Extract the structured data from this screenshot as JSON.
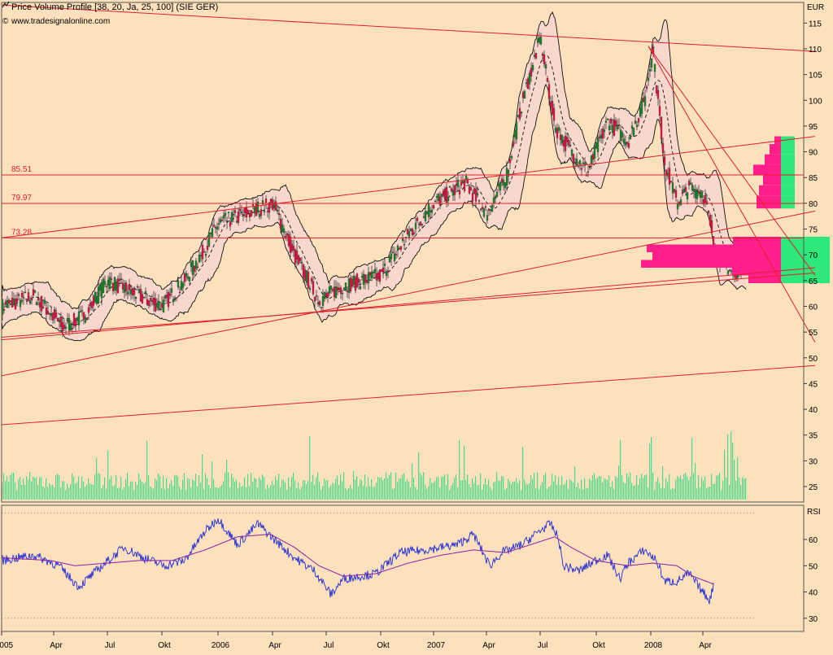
{
  "header": {
    "title": "Price Volume Profile [38, 20, Ja, 25, 100] (SIE GER)",
    "copyright": "www.tradesignalonline.com"
  },
  "colors": {
    "background": "#fde1bd",
    "trendline": "#e0202a",
    "bull_candle": "#1a8c2e",
    "bear_candle": "#e8174b",
    "volume": "#4cd98a",
    "profile_pink": "#ff1e8a",
    "profile_green": "#2ee87a",
    "rsi": "#1f2bd6",
    "rsi_avg": "#8a1fa6"
  },
  "chart_data": [
    {
      "type": "candlestick",
      "unit": "EUR",
      "ylim": [
        22,
        119
      ],
      "y_ticks": [
        25,
        30,
        35,
        40,
        45,
        50,
        55,
        60,
        65,
        70,
        75,
        80,
        85,
        90,
        95,
        100,
        105,
        110,
        115
      ],
      "x_labels": [
        "2005",
        "Apr",
        "Jul",
        "Okt",
        "2006",
        "Apr",
        "Jul",
        "Okt",
        "2007",
        "Apr",
        "Jul",
        "Okt",
        "2008",
        "Apr"
      ],
      "x_label_pos": [
        0,
        64,
        130,
        197,
        266,
        333,
        399,
        466,
        531,
        596,
        662,
        731,
        798,
        862
      ],
      "price_path": [
        [
          0,
          60
        ],
        [
          40,
          62
        ],
        [
          64,
          58
        ],
        [
          75,
          56
        ],
        [
          100,
          58
        ],
        [
          130,
          65
        ],
        [
          170,
          62
        ],
        [
          197,
          60
        ],
        [
          225,
          65
        ],
        [
          245,
          70
        ],
        [
          266,
          76
        ],
        [
          300,
          78
        ],
        [
          333,
          80
        ],
        [
          360,
          70
        ],
        [
          390,
          61
        ],
        [
          420,
          64
        ],
        [
          466,
          66
        ],
        [
          500,
          74
        ],
        [
          531,
          80
        ],
        [
          570,
          84
        ],
        [
          596,
          78
        ],
        [
          620,
          85
        ],
        [
          640,
          100
        ],
        [
          662,
          112
        ],
        [
          680,
          95
        ],
        [
          700,
          90
        ],
        [
          720,
          86
        ],
        [
          745,
          96
        ],
        [
          770,
          92
        ],
        [
          790,
          100
        ],
        [
          800,
          110
        ],
        [
          815,
          88
        ],
        [
          830,
          80
        ],
        [
          845,
          83
        ],
        [
          862,
          82
        ],
        [
          880,
          70
        ],
        [
          900,
          66
        ],
        [
          915,
          70
        ]
      ],
      "horizontal_levels": [
        {
          "label": "85.51",
          "value": 85.51
        },
        {
          "label": "79.97",
          "value": 79.97
        },
        {
          "label": "73.28",
          "value": 73.28
        }
      ],
      "trendlines": [
        [
          [
            0,
            118.5
          ],
          [
            1000,
            109.5
          ]
        ],
        [
          [
            0,
            73.3
          ],
          [
            1000,
            93
          ]
        ],
        [
          [
            0,
            46.5
          ],
          [
            1000,
            78.5
          ]
        ],
        [
          [
            0,
            54
          ],
          [
            1000,
            66.5
          ]
        ],
        [
          [
            0,
            53.5
          ],
          [
            1000,
            67.5
          ]
        ],
        [
          [
            0,
            37
          ],
          [
            1000,
            48.5
          ]
        ],
        [
          [
            795,
            110.5
          ],
          [
            1000,
            66
          ]
        ],
        [
          [
            795,
            110.5
          ],
          [
            1000,
            53
          ]
        ]
      ],
      "volume_profile": [
        {
          "low": 91.5,
          "high": 93,
          "pink": 8,
          "green": 17
        },
        {
          "low": 89.5,
          "high": 91.5,
          "pink": 14,
          "green": 17
        },
        {
          "low": 87.5,
          "high": 89.5,
          "pink": 20,
          "green": 17
        },
        {
          "low": 85.5,
          "high": 87.5,
          "pink": 34,
          "green": 17
        },
        {
          "low": 83.5,
          "high": 85.5,
          "pink": 22,
          "green": 17
        },
        {
          "low": 81.5,
          "high": 83.5,
          "pink": 27,
          "green": 17
        },
        {
          "low": 79.5,
          "high": 81.5,
          "pink": 30,
          "green": 17
        },
        {
          "low": 79,
          "high": 79.5,
          "pink": 30,
          "green": 17
        },
        {
          "low": 73.5,
          "high": 75.5,
          "pink": 0,
          "green": 0
        },
        {
          "low": 72,
          "high": 73.5,
          "pink": 59,
          "green": 60
        },
        {
          "low": 70.5,
          "high": 72,
          "pink": 165,
          "green": 60
        },
        {
          "low": 69,
          "high": 70.5,
          "pink": 158,
          "green": 60
        },
        {
          "low": 67.5,
          "high": 69,
          "pink": 172,
          "green": 60
        },
        {
          "low": 66,
          "high": 67.5,
          "pink": 60,
          "green": 60
        },
        {
          "low": 64.5,
          "high": 66,
          "pink": 40,
          "green": 60
        }
      ]
    },
    {
      "type": "line",
      "name": "RSI",
      "ylim": [
        25,
        73
      ],
      "y_ticks": [
        30,
        40,
        50,
        60
      ],
      "reference_lines": [
        30,
        70
      ],
      "rsi_path": [
        [
          0,
          52
        ],
        [
          40,
          54
        ],
        [
          70,
          50
        ],
        [
          95,
          42
        ],
        [
          120,
          49
        ],
        [
          150,
          57
        ],
        [
          175,
          53
        ],
        [
          200,
          50
        ],
        [
          225,
          52
        ],
        [
          250,
          63
        ],
        [
          266,
          68
        ],
        [
          290,
          58
        ],
        [
          315,
          66
        ],
        [
          335,
          60
        ],
        [
          360,
          53
        ],
        [
          385,
          48
        ],
        [
          405,
          39
        ],
        [
          420,
          45
        ],
        [
          460,
          47
        ],
        [
          490,
          55
        ],
        [
          520,
          56
        ],
        [
          560,
          58
        ],
        [
          580,
          62
        ],
        [
          600,
          50
        ],
        [
          615,
          55
        ],
        [
          640,
          58
        ],
        [
          660,
          63
        ],
        [
          675,
          66
        ],
        [
          685,
          60
        ],
        [
          690,
          50
        ],
        [
          710,
          48
        ],
        [
          730,
          52
        ],
        [
          745,
          54
        ],
        [
          760,
          45
        ],
        [
          770,
          51
        ],
        [
          790,
          56
        ],
        [
          805,
          52
        ],
        [
          815,
          44
        ],
        [
          830,
          44
        ],
        [
          845,
          47
        ],
        [
          862,
          40
        ],
        [
          870,
          37
        ],
        [
          875,
          42
        ]
      ],
      "rsi_avg_path": [
        [
          0,
          53
        ],
        [
          60,
          52
        ],
        [
          90,
          50
        ],
        [
          130,
          51
        ],
        [
          170,
          52
        ],
        [
          210,
          52
        ],
        [
          250,
          56
        ],
        [
          290,
          61
        ],
        [
          330,
          62
        ],
        [
          360,
          57
        ],
        [
          390,
          50
        ],
        [
          420,
          46
        ],
        [
          460,
          47
        ],
        [
          500,
          51
        ],
        [
          540,
          54
        ],
        [
          580,
          56
        ],
        [
          620,
          55
        ],
        [
          650,
          58
        ],
        [
          680,
          61
        ],
        [
          700,
          57
        ],
        [
          730,
          52
        ],
        [
          770,
          50
        ],
        [
          800,
          51
        ],
        [
          830,
          50
        ],
        [
          850,
          46
        ],
        [
          875,
          43
        ]
      ]
    }
  ]
}
